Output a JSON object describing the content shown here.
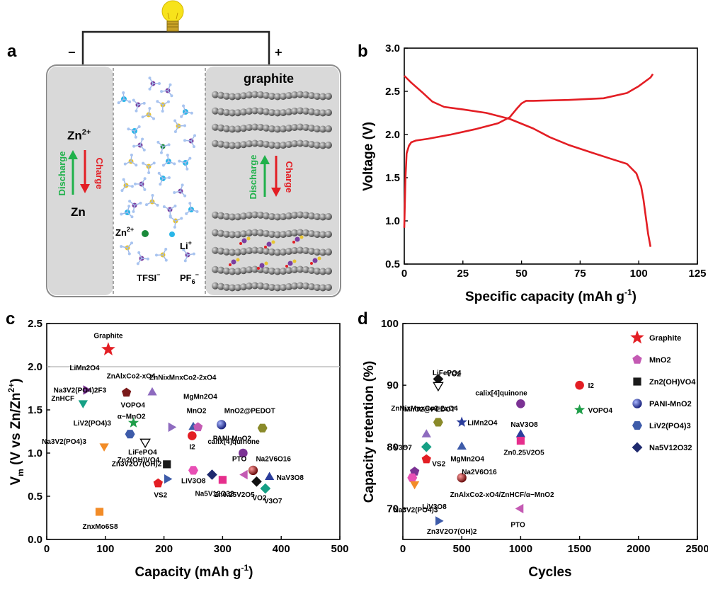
{
  "panels": {
    "a": {
      "letter": "a",
      "minus": "−",
      "plus": "+",
      "graphite": "graphite",
      "zn_ion": "Zn",
      "zn_ion_sup": "2+",
      "zn": "Zn",
      "discharge": "Discharge",
      "charge": "Charge",
      "legend_zn": "Zn",
      "legend_zn_sup": "2+",
      "legend_li": "Li",
      "legend_li_sup": "+",
      "legend_tfsi": "TFSI",
      "legend_tfsi_sup": "−",
      "legend_pf6": "PF",
      "legend_pf6_sub": "6",
      "legend_pf6_sup": "−"
    },
    "b": {
      "letter": "b"
    },
    "c": {
      "letter": "c"
    },
    "d": {
      "letter": "d"
    }
  },
  "colors": {
    "red": "#e31e24",
    "green": "#1fb14a",
    "gray_panel": "#d9d9d9",
    "bulb": "#f7e31b"
  },
  "chart_data": [
    {
      "id": "b",
      "type": "line",
      "xlabel": "Specific capacity (mAh g",
      "xlabel_sup": "-1",
      "xlabel_end": ")",
      "ylabel": "Voltage (V)",
      "xlim": [
        0,
        125
      ],
      "ylim": [
        0.5,
        3.0
      ],
      "xticks": [
        "0",
        "25",
        "50",
        "75",
        "100",
        "125"
      ],
      "yticks": [
        "0.5",
        "1.0",
        "1.5",
        "2.0",
        "2.5",
        "3.0"
      ],
      "series": [
        {
          "name": "charge",
          "x": [
            0,
            0.5,
            1,
            2,
            3,
            5,
            10,
            20,
            30,
            40,
            45,
            48,
            50,
            52,
            55,
            70,
            85,
            95,
            100,
            105,
            106
          ],
          "y": [
            0.92,
            1.5,
            1.78,
            1.87,
            1.91,
            1.93,
            1.95,
            2.0,
            2.06,
            2.13,
            2.2,
            2.3,
            2.36,
            2.39,
            2.39,
            2.4,
            2.42,
            2.48,
            2.56,
            2.66,
            2.7
          ]
        },
        {
          "name": "discharge",
          "x": [
            0,
            3,
            8,
            12,
            17,
            25,
            35,
            45,
            55,
            62,
            70,
            80,
            88,
            95,
            99,
            101,
            102,
            103,
            104,
            105
          ],
          "y": [
            2.68,
            2.6,
            2.48,
            2.38,
            2.32,
            2.29,
            2.25,
            2.18,
            2.07,
            1.97,
            1.88,
            1.79,
            1.72,
            1.66,
            1.55,
            1.4,
            1.25,
            1.05,
            0.85,
            0.7
          ]
        }
      ]
    },
    {
      "id": "c",
      "type": "scatter",
      "xlabel": "Capacity (mAh g",
      "xlabel_sup": "-1",
      "xlabel_end": ")",
      "ylabel": "V",
      "ylabel_sub": "m",
      "ylabel_rest": " (V vs Zn/Zn",
      "ylabel_sup": "2+",
      "ylabel_end": ")",
      "xlim": [
        0,
        500
      ],
      "ylim": [
        0.0,
        2.5
      ],
      "xticks": [
        "0",
        "100",
        "200",
        "300",
        "400",
        "500"
      ],
      "yticks": [
        "0.0",
        "0.5",
        "1.0",
        "1.5",
        "2.0",
        "2.5"
      ],
      "reference_line": 2.0,
      "points": [
        {
          "label": "Graphite",
          "x": 105,
          "y": 2.2,
          "shape": "star",
          "color": "#e31e24"
        },
        {
          "label": "LiMn2O4",
          "x": 67,
          "y": 1.73,
          "shape": "tri-right",
          "color": "#7b3294"
        },
        {
          "label": "ZnHCF",
          "x": 62,
          "y": 1.58,
          "shape": "tri-down",
          "color": "#16a085"
        },
        {
          "label": "ZnAlxCo2-xO4",
          "x": 136,
          "y": 1.7,
          "shape": "pent",
          "color": "#7b1a1a"
        },
        {
          "label": "ZnNixMnxCo2-2xO4",
          "x": 180,
          "y": 1.7,
          "shape": "tri-up",
          "color": "#8e6bbf"
        },
        {
          "label": "VOPO4",
          "x": 148,
          "y": 1.35,
          "shape": "star",
          "color": "#1f9e49"
        },
        {
          "label": "Na3V2(PO4)2F3",
          "x": 60,
          "y": 1.7,
          "shape": "none",
          "color": "#000000"
        },
        {
          "label": "LiV2(PO4)3",
          "x": 142,
          "y": 1.22,
          "shape": "hex",
          "color": "#3d5ba9"
        },
        {
          "label": "Na3V2(PO4)3",
          "x": 98,
          "y": 1.08,
          "shape": "tri-down",
          "color": "#f28c28"
        },
        {
          "label": "LiFePO4",
          "x": 168,
          "y": 1.13,
          "shape": "tri-down-open",
          "color": "#000000"
        },
        {
          "label": "α−MnO2",
          "x": 212,
          "y": 1.3,
          "shape": "tri-right",
          "color": "#8e6bbf"
        },
        {
          "label": "MgMn2O4",
          "x": 250,
          "y": 1.3,
          "shape": "tri-up",
          "color": "#3d5ba9"
        },
        {
          "label": "MnO2",
          "x": 258,
          "y": 1.3,
          "shape": "pent",
          "color": "#c45ab3"
        },
        {
          "label": "I2",
          "x": 248,
          "y": 1.2,
          "shape": "circle",
          "color": "#e31e24"
        },
        {
          "label": "PANI-MnO2",
          "x": 298,
          "y": 1.33,
          "shape": "sphere",
          "color": "#2b3d9c"
        },
        {
          "label": "MnO2@PEDOT",
          "x": 368,
          "y": 1.29,
          "shape": "hex",
          "color": "#8a8a2a"
        },
        {
          "label": "calix[4]quinone",
          "x": 335,
          "y": 1.0,
          "shape": "circle",
          "color": "#7b3294"
        },
        {
          "label": "Zn2(OH)VO4",
          "x": 205,
          "y": 0.87,
          "shape": "square",
          "color": "#1a1a1a"
        },
        {
          "label": "LiV3O8",
          "x": 250,
          "y": 0.8,
          "shape": "hex",
          "color": "#e84fb5"
        },
        {
          "label": "Zn3V2O7(OH)2",
          "x": 205,
          "y": 0.7,
          "shape": "tri-right",
          "color": "#3d5ba9"
        },
        {
          "label": "VS2",
          "x": 190,
          "y": 0.65,
          "shape": "pent",
          "color": "#e31e24"
        },
        {
          "label": "Na5V12O32",
          "x": 282,
          "y": 0.75,
          "shape": "diamond",
          "color": "#1f2a6e"
        },
        {
          "label": "Zn0.25V2O5",
          "x": 300,
          "y": 0.69,
          "shape": "square",
          "color": "#e62e8c"
        },
        {
          "label": "PTO",
          "x": 338,
          "y": 0.75,
          "shape": "tri-left",
          "color": "#c45ab3"
        },
        {
          "label": "Na2V6O16",
          "x": 352,
          "y": 0.8,
          "shape": "sphere",
          "color": "#8b1a1a"
        },
        {
          "label": "VO2",
          "x": 358,
          "y": 0.67,
          "shape": "diamond",
          "color": "#111111"
        },
        {
          "label": "NaV3O8",
          "x": 380,
          "y": 0.72,
          "shape": "tri-up",
          "color": "#2b3d9c"
        },
        {
          "label": "V3O7",
          "x": 373,
          "y": 0.59,
          "shape": "diamond",
          "color": "#16a085"
        },
        {
          "label": "ZnxMo6S8",
          "x": 90,
          "y": 0.32,
          "shape": "square",
          "color": "#f28c28"
        }
      ]
    },
    {
      "id": "d",
      "type": "scatter",
      "xlabel": "Cycles",
      "ylabel": "Capacity retention (%)",
      "xlim": [
        0,
        2500
      ],
      "ylim": [
        65,
        100
      ],
      "xticks": [
        "0",
        "500",
        "1000",
        "1500",
        "2000",
        "2500"
      ],
      "yticks": [
        "70",
        "80",
        "90",
        "100"
      ],
      "points": [
        {
          "label": "VO2",
          "x": 300,
          "y": 91,
          "shape": "diamond",
          "color": "#111111"
        },
        {
          "label": "LiFePO4",
          "x": 300,
          "y": 90,
          "shape": "tri-down-open",
          "color": "#000000"
        },
        {
          "label": "ZnNixMnxCo2-2xO4",
          "x": 200,
          "y": 82,
          "shape": "tri-up",
          "color": "#8e6bbf"
        },
        {
          "label": "MnO2@PEDOT",
          "x": 300,
          "y": 84,
          "shape": "hex",
          "color": "#8a8a2a"
        },
        {
          "label": "LiMn2O4",
          "x": 500,
          "y": 84,
          "shape": "star",
          "color": "#2b3d9c"
        },
        {
          "label": "calix[4]quinone",
          "x": 1000,
          "y": 87,
          "shape": "circle",
          "color": "#7b3294"
        },
        {
          "label": "I2",
          "x": 1500,
          "y": 90,
          "shape": "circle",
          "color": "#e31e24"
        },
        {
          "label": "VOPO4",
          "x": 1500,
          "y": 86,
          "shape": "star",
          "color": "#1f9e49"
        },
        {
          "label": "V3O7",
          "x": 200,
          "y": 80,
          "shape": "diamond",
          "color": "#16a085"
        },
        {
          "label": "MgMn2O4",
          "x": 500,
          "y": 80,
          "shape": "tri-up",
          "color": "#3d5ba9"
        },
        {
          "label": "NaV3O8",
          "x": 1000,
          "y": 82,
          "shape": "tri-up",
          "color": "#2b3d9c"
        },
        {
          "label": "Zn0.25V2O5",
          "x": 1000,
          "y": 81,
          "shape": "square",
          "color": "#e62e8c"
        },
        {
          "label": "VS2",
          "x": 200,
          "y": 78,
          "shape": "pent",
          "color": "#e31e24"
        },
        {
          "label": "Na2V6O16",
          "x": 500,
          "y": 75,
          "shape": "sphere",
          "color": "#8b1a1a"
        },
        {
          "label": "ZnAlxCo2-xO4/ZnHCF/α−MnO2",
          "x": 100,
          "y": 76,
          "shape": "pent",
          "color": "#7b3294"
        },
        {
          "label": "LiV3O8",
          "x": 80,
          "y": 75,
          "shape": "hex",
          "color": "#e84fb5"
        },
        {
          "label": "Na3V2(PO4)3",
          "x": 100,
          "y": 74,
          "shape": "tri-down",
          "color": "#f28c28"
        },
        {
          "label": "Zn3V2O7(OH)2",
          "x": 300,
          "y": 68,
          "shape": "tri-right",
          "color": "#3d5ba9"
        },
        {
          "label": "PTO",
          "x": 1000,
          "y": 70,
          "shape": "tri-left",
          "color": "#c45ab3"
        }
      ],
      "legend": [
        {
          "label": "Graphite",
          "shape": "star",
          "color": "#e31e24"
        },
        {
          "label": "MnO2",
          "shape": "pent",
          "color": "#c45ab3"
        },
        {
          "label": "Zn2(OH)VO4",
          "shape": "square",
          "color": "#1a1a1a"
        },
        {
          "label": "PANI-MnO2",
          "shape": "sphere",
          "color": "#2b3d9c"
        },
        {
          "label": "LiV2(PO4)3",
          "shape": "hex",
          "color": "#3d5ba9"
        },
        {
          "label": "Na5V12O32",
          "shape": "diamond",
          "color": "#1f2a6e"
        }
      ]
    }
  ]
}
